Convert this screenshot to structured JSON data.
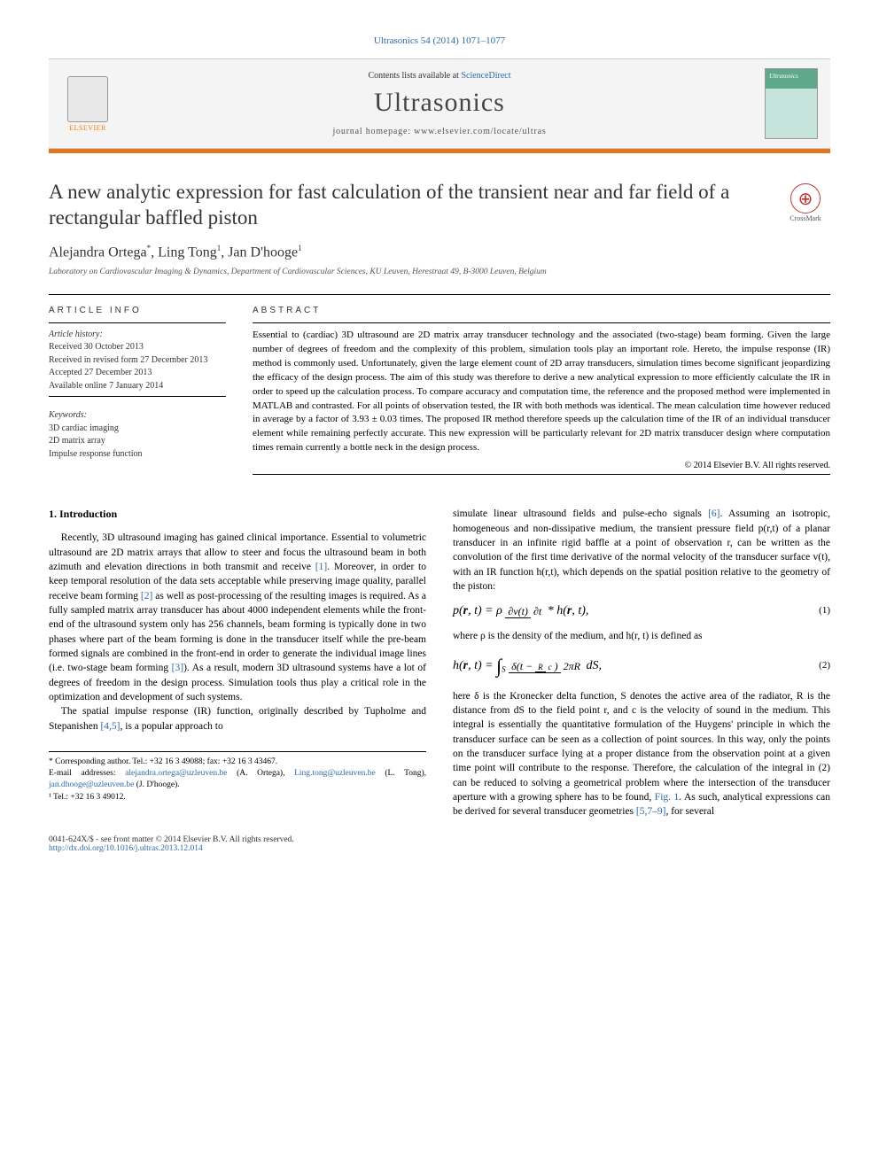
{
  "journal_ref": "Ultrasonics 54 (2014) 1071–1077",
  "header": {
    "contents_prefix": "Contents lists available at ",
    "contents_link": "ScienceDirect",
    "journal_name": "Ultrasonics",
    "homepage_prefix": "journal homepage: ",
    "homepage_url": "www.elsevier.com/locate/ultras",
    "publisher": "ELSEVIER"
  },
  "crossmark_label": "CrossMark",
  "title": "A new analytic expression for fast calculation of the transient near and far field of a rectangular baffled piston",
  "authors_html": "Alejandra Ortega *, Ling Tong ¹, Jan D'hooge ¹",
  "authors": {
    "a1_name": "Alejandra Ortega",
    "a1_mark": "*",
    "a2_name": "Ling Tong",
    "a2_mark": "1",
    "a3_name": "Jan D'hooge",
    "a3_mark": "1"
  },
  "affiliation": "Laboratory on Cardiovascular Imaging & Dynamics, Department of Cardiovascular Sciences, KU Leuven, Herestraat 49, B-3000 Leuven, Belgium",
  "article_info": {
    "header": "article info",
    "history_label": "Article history:",
    "received": "Received 30 October 2013",
    "revised": "Received in revised form 27 December 2013",
    "accepted": "Accepted 27 December 2013",
    "online": "Available online 7 January 2014",
    "keywords_label": "Keywords:",
    "kw1": "3D cardiac imaging",
    "kw2": "2D matrix array",
    "kw3": "Impulse response function"
  },
  "abstract": {
    "header": "abstract",
    "body": "Essential to (cardiac) 3D ultrasound are 2D matrix array transducer technology and the associated (two-stage) beam forming. Given the large number of degrees of freedom and the complexity of this problem, simulation tools play an important role. Hereto, the impulse response (IR) method is commonly used. Unfortunately, given the large element count of 2D array transducers, simulation times become significant jeopardizing the efficacy of the design process. The aim of this study was therefore to derive a new analytical expression to more efficiently calculate the IR in order to speed up the calculation process. To compare accuracy and computation time, the reference and the proposed method were implemented in MATLAB and contrasted. For all points of observation tested, the IR with both methods was identical. The mean calculation time however reduced in average by a factor of 3.93 ± 0.03 times. The proposed IR method therefore speeds up the calculation time of the IR of an individual transducer element while remaining perfectly accurate. This new expression will be particularly relevant for 2D matrix transducer design where computation times remain currently a bottle neck in the design process.",
    "copyright": "© 2014 Elsevier B.V. All rights reserved."
  },
  "intro": {
    "heading": "1. Introduction",
    "p1a": "Recently, 3D ultrasound imaging has gained clinical importance. Essential to volumetric ultrasound are 2D matrix arrays that allow to steer and focus the ultrasound beam in both azimuth and elevation directions in both transmit and receive ",
    "ref1": "[1]",
    "p1b": ". Moreover, in order to keep temporal resolution of the data sets acceptable while preserving image quality, parallel receive beam forming ",
    "ref2": "[2]",
    "p1c": " as well as post-processing of the resulting images is required. As a fully sampled matrix array transducer has about 4000 independent elements while the front-end of the ultrasound system only has 256 channels, beam forming is typically done in two phases where part of the beam forming is done in the transducer itself while the pre-beam formed signals are combined in the front-end in order to generate the individual image lines (i.e. two-stage beam forming ",
    "ref3": "[3]",
    "p1d": "). As a result, modern 3D ultrasound systems have a lot of degrees of freedom in the design process. Simulation tools thus play a critical role in the optimization and development of such systems.",
    "p2a": "The spatial impulse response (IR) function, originally described by Tupholme and Stepanishen ",
    "ref45": "[4,5]",
    "p2b": ", is a popular approach to",
    "r2a": "simulate linear ultrasound fields and pulse-echo signals ",
    "ref6": "[6]",
    "r2b": ". Assuming an isotropic, homogeneous and non-dissipative medium, the transient pressure field p(r,t) of a planar transducer in an infinite rigid baffle at a point of observation r, can be written as the convolution of the first time derivative of the normal velocity of the transducer surface v(t), with an IR function h(r,t), which depends on the spatial position relative to the geometry of the piston:",
    "r_after_eq1": "where ρ is the density of the medium, and h(r, t) is defined as",
    "r_after_eq2a": "here δ is the Kronecker delta function, S denotes the active area of the radiator, R is the distance from dS to the field point r, and c is the velocity of sound in the medium. This integral is essentially the quantitative formulation of the Huygens' principle in which the transducer surface can be seen as a collection of point sources. In this way, only the points on the transducer surface lying at a proper distance from the observation point at a given time point will contribute to the response. Therefore, the calculation of the integral in (2) can be reduced to solving a geometrical problem where the intersection of the transducer aperture with a growing sphere has to be found, ",
    "fig1": "Fig. 1",
    "r_after_eq2b": ". As such, analytical expressions can be derived for several transducer geometries ",
    "ref579": "[5,7–9]",
    "r_after_eq2c": ", for several"
  },
  "equations": {
    "eq1_num": "(1)",
    "eq2_num": "(2)"
  },
  "footnotes": {
    "corr": "* Corresponding author. Tel.: +32 16 3 49088; fax: +32 16 3 43467.",
    "email_label": "E-mail addresses:",
    "e1": "alejandra.ortega@uzleuven.be",
    "e1p": "(A. Ortega),",
    "e2": "Ling.tong@uzleuven.be",
    "e2p": "(L. Tong),",
    "e3": "jan.dhooge@uzleuven.be",
    "e3p": "(J. D'hooge).",
    "tel": "¹ Tel.: +32 16 3 49012."
  },
  "footer": {
    "issn": "0041-624X/$ - see front matter © 2014 Elsevier B.V. All rights reserved.",
    "doi": "http://dx.doi.org/10.1016/j.ultras.2013.12.014"
  },
  "colors": {
    "link": "#2d6aa7",
    "accent_orange": "#e2761a",
    "elsevier_orange": "#ff7a00",
    "text": "#000000",
    "bg": "#ffffff",
    "cover_green_dark": "#5fa88c",
    "cover_green_light": "#c6e4dc"
  }
}
